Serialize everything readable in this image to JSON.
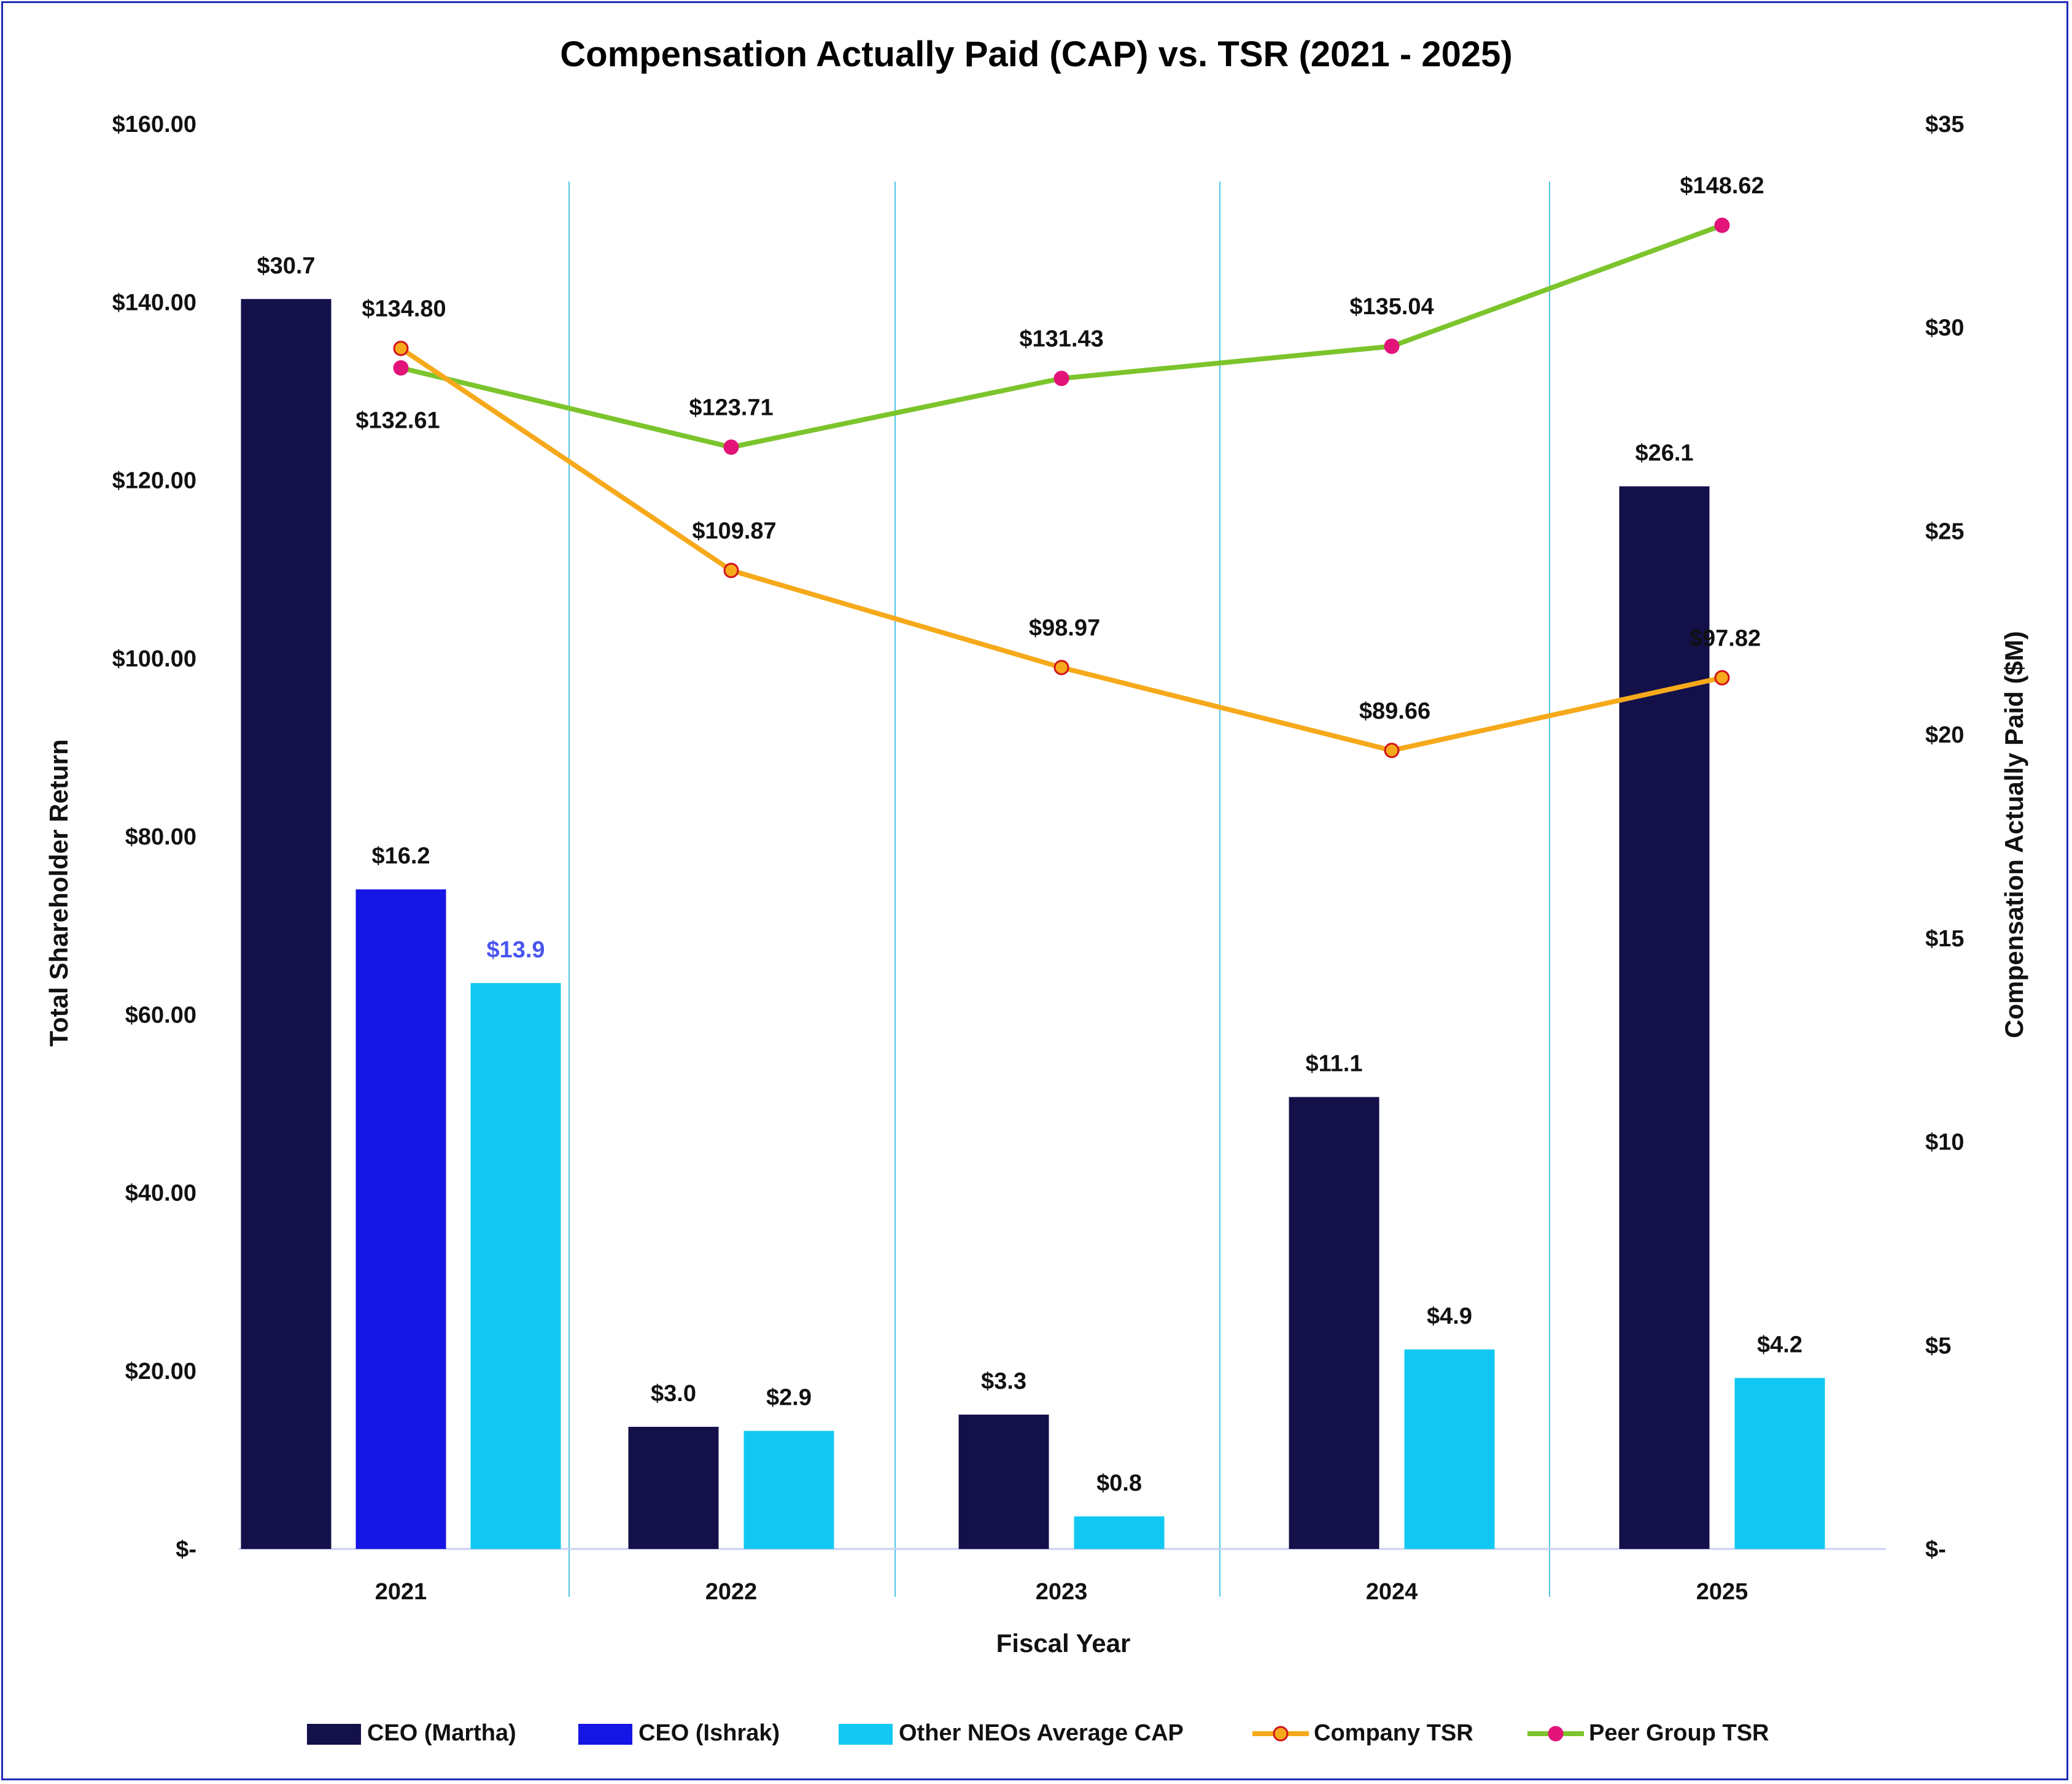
{
  "chart_data": {
    "type": "bar+line",
    "title": "Compensation Actually Paid (CAP) vs. TSR (2021 - 2025)",
    "xlabel": "Fiscal Year",
    "ylabel_left": "Total Shareholder Return",
    "ylabel_right": "Compensation Actually Paid ($M)",
    "categories": [
      "2021",
      "2022",
      "2023",
      "2024",
      "2025"
    ],
    "ylim_left": [
      0,
      160
    ],
    "ylim_right": [
      0,
      35
    ],
    "left_ticks": [
      "$-",
      "$20.00",
      "$40.00",
      "$60.00",
      "$80.00",
      "$100.00",
      "$120.00",
      "$140.00",
      "$160.00"
    ],
    "left_tick_values": [
      0,
      20,
      40,
      60,
      80,
      100,
      120,
      140,
      160
    ],
    "right_ticks": [
      "$-",
      "$5",
      "$10",
      "$15",
      "$20",
      "$25",
      "$30",
      "$35"
    ],
    "right_tick_values": [
      0,
      5,
      10,
      15,
      20,
      25,
      30,
      35
    ],
    "bar_series": [
      {
        "name": "CEO (Martha)",
        "color": "#14104a",
        "axis": "right",
        "values": [
          30.7,
          3.0,
          3.3,
          11.1,
          26.1
        ],
        "labels": [
          "$30.7",
          "$3.0",
          "$3.3",
          "$11.1",
          "$26.1"
        ],
        "label_colors": [
          "#111111",
          "#111111",
          "#111111",
          "#111111",
          "#111111"
        ]
      },
      {
        "name": "CEO (Ishrak)",
        "color": "#1515e6",
        "axis": "right",
        "values": [
          16.2,
          null,
          null,
          null,
          null
        ],
        "labels": [
          "$16.2",
          null,
          null,
          null,
          null
        ],
        "label_colors": [
          "#111111",
          null,
          null,
          null,
          null
        ]
      },
      {
        "name": "Other NEOs Average CAP",
        "color": "#12c8f2",
        "axis": "right",
        "values": [
          13.9,
          2.9,
          0.8,
          4.9,
          4.2
        ],
        "labels": [
          "$13.9",
          "$2.9",
          "$0.8",
          "$4.9",
          "$4.2"
        ],
        "label_colors": [
          "#4a55f0",
          "#111111",
          "#111111",
          "#111111",
          "#111111"
        ]
      }
    ],
    "line_series": [
      {
        "name": "Company TSR",
        "color": "#f6a91a",
        "marker_color": "#f6a91a",
        "marker_edge": "#d2131b",
        "axis": "left",
        "values": [
          134.8,
          109.87,
          98.97,
          89.66,
          97.82
        ],
        "labels": [
          "$134.80",
          "$109.87",
          "$98.97",
          "$89.66",
          "$97.82"
        ]
      },
      {
        "name": "Peer Group TSR",
        "color": "#7cc42c",
        "marker_color": "#e2147a",
        "marker_edge": "#e2147a",
        "axis": "left",
        "values": [
          132.61,
          123.71,
          131.43,
          135.04,
          148.62
        ],
        "labels": [
          "$132.61",
          "$123.71",
          "$131.43",
          "$135.04",
          "$148.62"
        ]
      }
    ],
    "legend_position": "bottom",
    "grid": false
  }
}
